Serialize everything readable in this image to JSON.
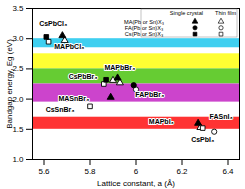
{
  "chart_data": {
    "type": "scatter",
    "x_label": "Lattice constant, a (Å)",
    "y_label": "Bandgap energy, Eg (eV)",
    "xlim": [
      5.55,
      6.45
    ],
    "xticks": [
      5.6,
      5.8,
      6.0,
      6.2,
      6.4
    ],
    "ylim": [
      1.0,
      3.5
    ],
    "yticks": [
      {
        "value": 1.0,
        "label": "1.0"
      },
      1.5,
      {
        "value": 2.0,
        "label": "2.0"
      },
      2.5,
      {
        "value": 3.0,
        "label": "3.0"
      },
      3.5
    ],
    "legend": "upper right",
    "legend_labels": {
      "filled": "Single crystal",
      "open": "Thin film"
    },
    "bands": [
      {
        "y1": 2.85,
        "y2": 3.0,
        "color": "#3fcff0"
      },
      {
        "y1": 2.5,
        "y2": 2.75,
        "color": "#ffff33"
      },
      {
        "y1": 2.25,
        "y2": 2.5,
        "color": "#66cc33"
      },
      {
        "y1": 1.95,
        "y2": 2.25,
        "color": "#cc44cc"
      },
      {
        "y1": 1.5,
        "y2": 1.7,
        "color": "#ff3333"
      }
    ],
    "series": [
      {
        "name": "MA(Pb or Sn)X₃",
        "marker": "triangle",
        "points": [
          {
            "x": 5.68,
            "y": 3.05,
            "single_crystal": true
          },
          {
            "x": 5.69,
            "y": 2.97,
            "single_crystal": false
          },
          {
            "x": 5.92,
            "y": 2.35,
            "single_crystal": true
          },
          {
            "x": 5.93,
            "y": 2.27,
            "single_crystal": false
          },
          {
            "x": 5.9,
            "y": 2.31,
            "single_crystal": false
          },
          {
            "x": 5.89,
            "y": 2.03,
            "single_crystal": true
          },
          {
            "x": 6.27,
            "y": 1.6,
            "single_crystal": true
          },
          {
            "x": 6.28,
            "y": 1.53,
            "single_crystal": false
          }
        ]
      },
      {
        "name": "FA(Pb or Sn)X₃",
        "marker": "circle",
        "points": [
          {
            "x": 5.99,
            "y": 2.23,
            "single_crystal": true
          },
          {
            "x": 6.0,
            "y": 2.16,
            "single_crystal": false
          },
          {
            "x": 6.34,
            "y": 1.46,
            "single_crystal": false
          }
        ]
      },
      {
        "name": "Cs(Pb or Sn)X₃",
        "marker": "square",
        "points": [
          {
            "x": 5.61,
            "y": 3.03,
            "single_crystal": true
          },
          {
            "x": 5.62,
            "y": 2.95,
            "single_crystal": false
          },
          {
            "x": 5.87,
            "y": 2.32,
            "single_crystal": true
          },
          {
            "x": 5.86,
            "y": 2.25,
            "single_crystal": false
          },
          {
            "x": 5.8,
            "y": 1.88,
            "single_crystal": false
          },
          {
            "x": 6.29,
            "y": 1.52,
            "single_crystal": false
          }
        ]
      }
    ],
    "annotations": [
      {
        "text": "CsPbCl₃",
        "x": 5.64,
        "y": 3.25
      },
      {
        "text": "MAPbCl₃",
        "x": 5.71,
        "y": 2.86
      },
      {
        "text": "MAPbBr₃",
        "x": 5.93,
        "y": 2.52
      },
      {
        "text": "CsPbBr₃",
        "x": 5.77,
        "y": 2.37
      },
      {
        "text": "FAPbBr₃",
        "x": 6.06,
        "y": 2.08
      },
      {
        "text": "MASnBr₃",
        "x": 5.73,
        "y": 2.0
      },
      {
        "text": "CsSnBr₃",
        "x": 5.67,
        "y": 1.82
      },
      {
        "text": "MAPbI₃",
        "x": 6.11,
        "y": 1.63
      },
      {
        "text": "FASnI₃",
        "x": 6.37,
        "y": 1.7
      },
      {
        "text": "CsPbI₃",
        "x": 6.29,
        "y": 1.33
      }
    ]
  }
}
